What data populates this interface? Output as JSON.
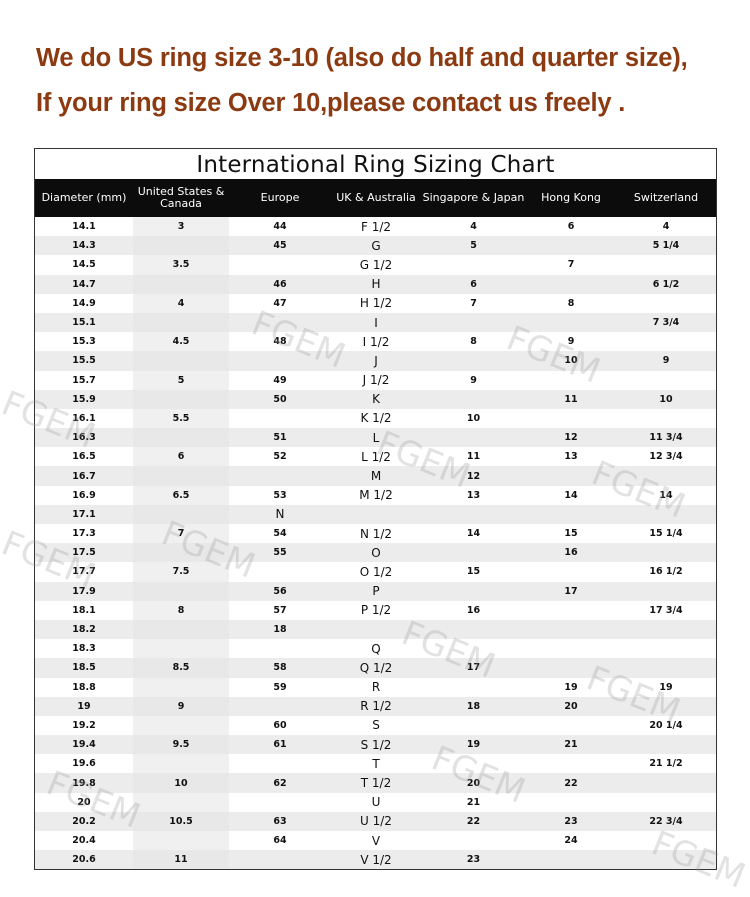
{
  "headline": {
    "line1": "We do US ring size 3-10 (also do half and quarter size),",
    "line2": "If your ring size Over 10,please contact us freely ."
  },
  "chart": {
    "title": "International Ring Sizing Chart",
    "columns": [
      "Diameter (mm)",
      "United States & Canada",
      "Europe",
      "UK & Australia",
      "Singapore & Japan",
      "Hong Kong",
      "Switzerland"
    ],
    "rows": [
      [
        "14.1",
        "3",
        "44",
        "F 1/2",
        "4",
        "6",
        "4"
      ],
      [
        "14.3",
        "",
        "45",
        "G",
        "5",
        "",
        "5 1/4"
      ],
      [
        "14.5",
        "3.5",
        "",
        "G 1/2",
        "",
        "7",
        ""
      ],
      [
        "14.7",
        "",
        "46",
        "H",
        "6",
        "",
        "6 1/2"
      ],
      [
        "14.9",
        "4",
        "47",
        "H 1/2",
        "7",
        "8",
        ""
      ],
      [
        "15.1",
        "",
        "",
        "I",
        "",
        "",
        "7 3/4"
      ],
      [
        "15.3",
        "4.5",
        "48",
        "I 1/2",
        "8",
        "9",
        ""
      ],
      [
        "15.5",
        "",
        "",
        "J",
        "",
        "10",
        "9"
      ],
      [
        "15.7",
        "5",
        "49",
        "J 1/2",
        "9",
        "",
        ""
      ],
      [
        "15.9",
        "",
        "50",
        "K",
        "",
        "11",
        "10"
      ],
      [
        "16.1",
        "5.5",
        "",
        "K 1/2",
        "10",
        "",
        ""
      ],
      [
        "16.3",
        "",
        "51",
        "L",
        "",
        "12",
        "11 3/4"
      ],
      [
        "16.5",
        "6",
        "52",
        "L 1/2",
        "11",
        "13",
        "12 3/4"
      ],
      [
        "16.7",
        "",
        "",
        "M",
        "12",
        "",
        ""
      ],
      [
        "16.9",
        "6.5",
        "53",
        "M 1/2",
        "13",
        "14",
        "14"
      ],
      [
        "17.1",
        "",
        "N",
        "",
        "",
        "",
        ""
      ],
      [
        "17.3",
        "7",
        "54",
        "N 1/2",
        "14",
        "15",
        "15 1/4"
      ],
      [
        "17.5",
        "",
        "55",
        "O",
        "",
        "16",
        ""
      ],
      [
        "17.7",
        "7.5",
        "",
        "O 1/2",
        "15",
        "",
        "16 1/2"
      ],
      [
        "17.9",
        "",
        "56",
        "P",
        "",
        "17",
        ""
      ],
      [
        "18.1",
        "8",
        "57",
        "P 1/2",
        "16",
        "",
        "17 3/4"
      ],
      [
        "18.2",
        "",
        "18",
        "",
        "",
        "",
        ""
      ],
      [
        "18.3",
        "",
        "",
        "Q",
        "",
        "",
        ""
      ],
      [
        "18.5",
        "8.5",
        "58",
        "Q 1/2",
        "17",
        "",
        ""
      ],
      [
        "18.8",
        "",
        "59",
        "R",
        "",
        "19",
        "19"
      ],
      [
        "19",
        "9",
        "",
        "R 1/2",
        "18",
        "20",
        ""
      ],
      [
        "19.2",
        "",
        "60",
        "S",
        "",
        "",
        "20 1/4"
      ],
      [
        "19.4",
        "9.5",
        "61",
        "S 1/2",
        "19",
        "21",
        ""
      ],
      [
        "19.6",
        "",
        "",
        "T",
        "",
        "",
        "21 1/2"
      ],
      [
        "19.8",
        "10",
        "62",
        "T 1/2",
        "20",
        "22",
        ""
      ],
      [
        "20",
        "",
        "",
        "U",
        "21",
        "",
        ""
      ],
      [
        "20.2",
        "10.5",
        "63",
        "U 1/2",
        "22",
        "23",
        "22 3/4"
      ],
      [
        "20.4",
        "",
        "64",
        "V",
        "",
        "24",
        ""
      ],
      [
        "20.6",
        "11",
        "",
        "V 1/2",
        "23",
        "",
        ""
      ]
    ]
  },
  "watermark": "FGEM",
  "colors": {
    "headline": "#8b3a12",
    "header_bg": "#0c0c0c"
  }
}
